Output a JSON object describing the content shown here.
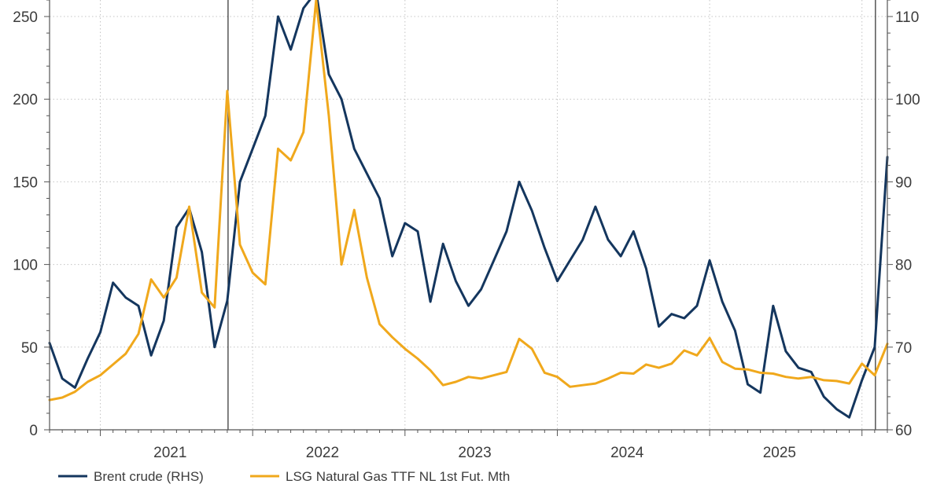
{
  "chart_data": {
    "type": "line",
    "title": "",
    "xlabel": "",
    "grid": true,
    "legend_position": "bottom-left",
    "x_axis": {
      "categories": [
        "2021",
        "2022",
        "2023",
        "2024",
        "2025"
      ],
      "range": [
        "2020-09",
        "2026-03"
      ]
    },
    "y_left": {
      "range": [
        0,
        260
      ],
      "ticks": [
        0,
        50,
        100,
        150,
        200,
        250
      ]
    },
    "y_right": {
      "range": [
        60,
        112
      ],
      "ticks": [
        60,
        70,
        80,
        90,
        100,
        110
      ]
    },
    "vertical_markers": [
      "2021-11",
      "2026-02"
    ],
    "series": [
      {
        "name": "Brent crude (RHS)",
        "axis": "right",
        "color": "#14365e",
        "points": [
          [
            "2020-09",
            70.5
          ],
          [
            "2020-10",
            66.2
          ],
          [
            "2020-11",
            65.1
          ],
          [
            "2020-12",
            68.6
          ],
          [
            "2021-01",
            71.8
          ],
          [
            "2021-02",
            77.8
          ],
          [
            "2021-03",
            76.0
          ],
          [
            "2021-04",
            75.0
          ],
          [
            "2021-05",
            69.0
          ],
          [
            "2021-06",
            73.2
          ],
          [
            "2021-07",
            84.5
          ],
          [
            "2021-08",
            86.8
          ],
          [
            "2021-09",
            81.5
          ],
          [
            "2021-10",
            70.0
          ],
          [
            "2021-11",
            75.6
          ],
          [
            "2021-12",
            90.0
          ],
          [
            "2022-01",
            94.0
          ],
          [
            "2022-02",
            98.0
          ],
          [
            "2022-03",
            110.0
          ],
          [
            "2022-04",
            106.0
          ],
          [
            "2022-05",
            111.0
          ],
          [
            "2022-06",
            113.0
          ],
          [
            "2022-07",
            103.0
          ],
          [
            "2022-08",
            100.0
          ],
          [
            "2022-09",
            94.0
          ],
          [
            "2022-10",
            91.0
          ],
          [
            "2022-11",
            88.0
          ],
          [
            "2022-12",
            81.0
          ],
          [
            "2023-01",
            85.0
          ],
          [
            "2023-02",
            84.0
          ],
          [
            "2023-03",
            75.5
          ],
          [
            "2023-04",
            82.5
          ],
          [
            "2023-05",
            78.0
          ],
          [
            "2023-06",
            75.0
          ],
          [
            "2023-07",
            77.0
          ],
          [
            "2023-08",
            80.5
          ],
          [
            "2023-09",
            84.0
          ],
          [
            "2023-10",
            90.0
          ],
          [
            "2023-11",
            86.5
          ],
          [
            "2023-12",
            82.0
          ],
          [
            "2024-01",
            78.0
          ],
          [
            "2024-02",
            80.5
          ],
          [
            "2024-03",
            83.0
          ],
          [
            "2024-04",
            87.0
          ],
          [
            "2024-05",
            83.0
          ],
          [
            "2024-06",
            81.0
          ],
          [
            "2024-07",
            84.0
          ],
          [
            "2024-08",
            79.5
          ],
          [
            "2024-09",
            72.5
          ],
          [
            "2024-10",
            74.0
          ],
          [
            "2024-11",
            73.5
          ],
          [
            "2024-12",
            75.0
          ],
          [
            "2025-01",
            80.5
          ],
          [
            "2025-02",
            75.5
          ],
          [
            "2025-03",
            72.0
          ],
          [
            "2025-04",
            65.5
          ],
          [
            "2025-05",
            64.5
          ],
          [
            "2025-06",
            75.0
          ],
          [
            "2025-07",
            69.5
          ],
          [
            "2025-08",
            67.5
          ],
          [
            "2025-09",
            67.0
          ],
          [
            "2025-10",
            64.0
          ],
          [
            "2025-11",
            62.5
          ],
          [
            "2025-12",
            61.5
          ],
          [
            "2026-01",
            66.0
          ],
          [
            "2026-02",
            70.0
          ],
          [
            "2026-03",
            93.0
          ]
        ]
      },
      {
        "name": "LSG Natural Gas TTF NL 1st Fut. Mth",
        "axis": "left",
        "color": "#f0a81c",
        "points": [
          [
            "2020-09",
            18.0
          ],
          [
            "2020-10",
            19.5
          ],
          [
            "2020-11",
            23.0
          ],
          [
            "2020-12",
            29.0
          ],
          [
            "2021-01",
            33.0
          ],
          [
            "2021-02",
            39.5
          ],
          [
            "2021-03",
            46.0
          ],
          [
            "2021-04",
            58.0
          ],
          [
            "2021-05",
            91.0
          ],
          [
            "2021-06",
            80.0
          ],
          [
            "2021-07",
            92.0
          ],
          [
            "2021-08",
            135.0
          ],
          [
            "2021-09",
            83.0
          ],
          [
            "2021-10",
            74.0
          ],
          [
            "2021-11",
            205.0
          ],
          [
            "2021-12",
            112.0
          ],
          [
            "2022-01",
            95.0
          ],
          [
            "2022-02",
            88.0
          ],
          [
            "2022-03",
            170.0
          ],
          [
            "2022-04",
            163.0
          ],
          [
            "2022-05",
            180.0
          ],
          [
            "2022-06",
            260.0
          ],
          [
            "2022-07",
            190.0
          ],
          [
            "2022-08",
            100.0
          ],
          [
            "2022-09",
            133.0
          ],
          [
            "2022-10",
            92.0
          ],
          [
            "2022-11",
            64.0
          ],
          [
            "2022-12",
            56.0
          ],
          [
            "2023-01",
            49.0
          ],
          [
            "2023-02",
            43.0
          ],
          [
            "2023-03",
            36.0
          ],
          [
            "2023-04",
            27.0
          ],
          [
            "2023-05",
            29.0
          ],
          [
            "2023-06",
            32.0
          ],
          [
            "2023-07",
            31.0
          ],
          [
            "2023-08",
            33.0
          ],
          [
            "2023-09",
            35.0
          ],
          [
            "2023-10",
            55.0
          ],
          [
            "2023-11",
            49.0
          ],
          [
            "2023-12",
            34.5
          ],
          [
            "2024-01",
            32.0
          ],
          [
            "2024-02",
            26.0
          ],
          [
            "2024-03",
            27.0
          ],
          [
            "2024-04",
            28.0
          ],
          [
            "2024-05",
            31.0
          ],
          [
            "2024-06",
            34.5
          ],
          [
            "2024-07",
            34.0
          ],
          [
            "2024-08",
            39.5
          ],
          [
            "2024-09",
            37.5
          ],
          [
            "2024-10",
            40.0
          ],
          [
            "2024-11",
            48.0
          ],
          [
            "2024-12",
            45.0
          ],
          [
            "2025-01",
            55.5
          ],
          [
            "2025-02",
            41.0
          ],
          [
            "2025-03",
            37.0
          ],
          [
            "2025-04",
            36.5
          ],
          [
            "2025-05",
            34.5
          ],
          [
            "2025-06",
            34.0
          ],
          [
            "2025-07",
            32.0
          ],
          [
            "2025-08",
            31.0
          ],
          [
            "2025-09",
            32.0
          ],
          [
            "2025-10",
            30.0
          ],
          [
            "2025-11",
            29.5
          ],
          [
            "2025-12",
            28.0
          ],
          [
            "2026-01",
            40.0
          ],
          [
            "2026-02",
            33.0
          ],
          [
            "2026-03",
            52.0
          ]
        ]
      }
    ]
  }
}
